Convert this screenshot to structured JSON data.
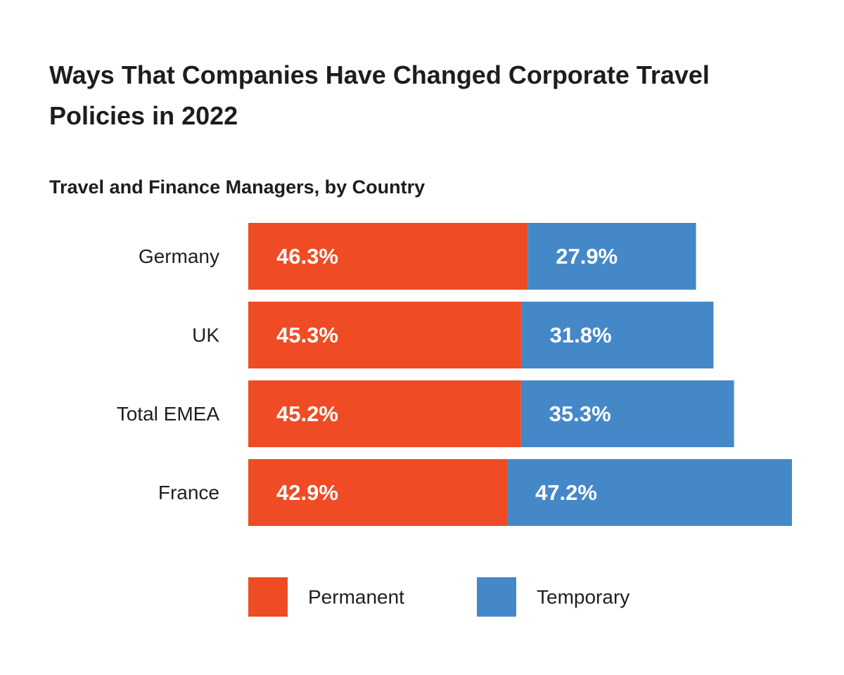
{
  "chart_data": {
    "type": "bar",
    "orientation": "horizontal",
    "stacked": true,
    "title": "Ways That Companies Have Changed Corporate Travel Policies in 2022",
    "subtitle": "Travel and Finance Managers, by Country",
    "categories": [
      "Germany",
      "UK",
      "Total EMEA",
      "France"
    ],
    "series": [
      {
        "name": "Permanent",
        "color": "#ef4b24",
        "values": [
          46.3,
          45.3,
          45.2,
          42.9
        ],
        "labels": [
          "46.3%",
          "45.3%",
          "45.2%",
          "42.9%"
        ]
      },
      {
        "name": "Temporary",
        "color": "#4588c8",
        "values": [
          27.9,
          31.8,
          35.3,
          47.2
        ],
        "labels": [
          "27.9%",
          "31.8%",
          "35.3%",
          "47.2%"
        ]
      }
    ],
    "xlim": [
      0,
      90.1
    ],
    "grid": false,
    "axes_visible": false,
    "legend_position": "bottom"
  }
}
